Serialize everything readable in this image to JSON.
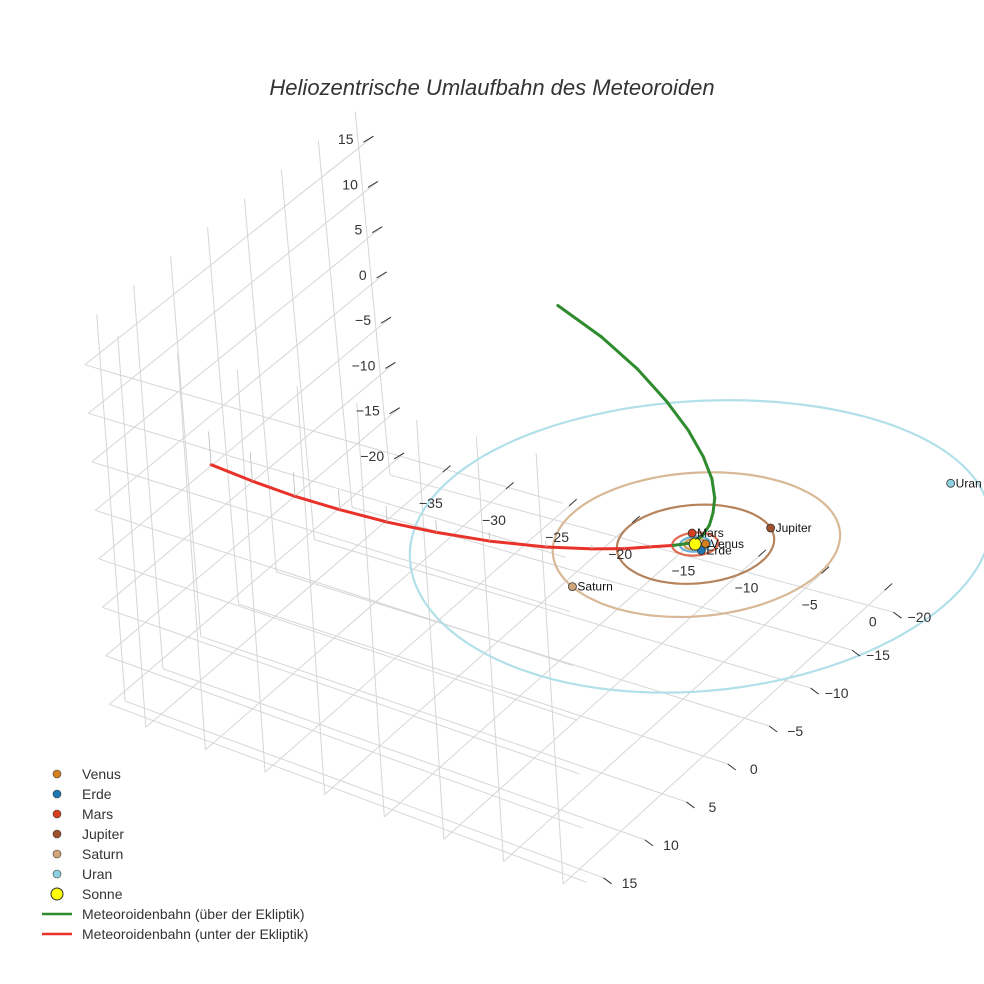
{
  "chart_data": {
    "type": "scatter3d",
    "title": "Heliozentrische Umlaufbahn des Meteoroiden",
    "xlabel": "",
    "ylabel": "",
    "zlabel": "",
    "axes": {
      "x": {
        "range": [
          -38,
          2
        ],
        "ticks": [
          -35,
          -30,
          -25,
          -20,
          -15,
          -10,
          -5,
          0
        ]
      },
      "y": {
        "range": [
          -22,
          17
        ],
        "ticks": [
          -20,
          -15,
          -10,
          -5,
          0,
          5,
          10,
          15
        ]
      },
      "z": {
        "range": [
          -21,
          19
        ],
        "ticks": [
          -20,
          -15,
          -10,
          -5,
          0,
          5,
          10,
          15
        ]
      }
    },
    "grid": true,
    "legend_position": "bottom-left",
    "planets": [
      {
        "name": "Venus",
        "label": "Venus",
        "color": "#d4801f",
        "x": 0.6,
        "y": -0.35,
        "z": 0,
        "orbit_radius": 0.72
      },
      {
        "name": "Erde",
        "label": "Erde",
        "color": "#1f77b4",
        "x": 0.85,
        "y": 0.5,
        "z": 0,
        "orbit_radius": 1.0
      },
      {
        "name": "Mars",
        "label": "Mars",
        "color": "#d6401f",
        "x": -1.0,
        "y": -1.1,
        "z": 0,
        "orbit_radius": 1.52
      },
      {
        "name": "Jupiter",
        "label": "Jupiter",
        "color": "#a0522d",
        "x": 3.2,
        "y": -4.1,
        "z": 0,
        "orbit_radius": 5.2
      },
      {
        "name": "Saturn",
        "label": "Saturn",
        "color": "#d2a679",
        "x": -4.0,
        "y": 8.6,
        "z": 0,
        "orbit_radius": 9.5
      },
      {
        "name": "Uran",
        "label": "Uran",
        "color": "#8fd0e0",
        "x": 10.3,
        "y": -14.3,
        "z": 0,
        "orbit_radius": 19.2
      }
    ],
    "orbit_colors": {
      "Venus": "#d59a52",
      "Erde": "#6cb4d6",
      "Mars": "#e06c4f",
      "Jupiter": "#b5835c",
      "Saturn": "#d8b896",
      "Uran": "#b2e0ea"
    },
    "sun": {
      "name": "Sonne",
      "label": "Sonne",
      "color": "#ffff00",
      "x": 0,
      "y": 0,
      "z": 0
    },
    "meteoroid_track": {
      "x": [
        -37,
        -33,
        -29,
        -25,
        -21,
        -17,
        -13,
        -9,
        -6,
        -4,
        -2.5,
        -1.2,
        -0.3,
        0.2,
        0.35,
        0.25,
        0,
        -0.6,
        -1.6,
        -3.0,
        -4.8,
        -7.0,
        -9.6,
        -12.6
      ],
      "y": [
        3.5,
        4.5,
        5.3,
        5.8,
        6.0,
        5.9,
        5.4,
        4.5,
        3.4,
        2.5,
        1.6,
        0.8,
        0.1,
        -0.6,
        -1.2,
        -1.8,
        -2.4,
        -3.0,
        -3.5,
        -3.9,
        -4.1,
        -4.1,
        -3.9,
        -3.4
      ],
      "z": [
        -3.5,
        -3.0,
        -2.5,
        -2.0,
        -1.6,
        -1.2,
        -0.9,
        -0.6,
        -0.4,
        -0.25,
        -0.12,
        -0.03,
        0.05,
        0.5,
        1.2,
        2.0,
        3.0,
        4.3,
        5.9,
        7.8,
        10.0,
        12.5,
        15.0,
        17.5
      ]
    },
    "series": [
      {
        "name": "Meteoroidenbahn (über der Ekliptik)",
        "color": "#2e8b2e",
        "label": "Meteoroidenbahn (über der Ekliptik)"
      },
      {
        "name": "Meteoroidenbahn (unter der Ekliptik)",
        "color": "#e8322a",
        "label": "Meteoroidenbahn (unter der Ekliptik)"
      }
    ],
    "legend": [
      {
        "label": "Venus",
        "color": "#d4801f",
        "kind": "marker"
      },
      {
        "label": "Erde",
        "color": "#1f77b4",
        "kind": "marker"
      },
      {
        "label": "Mars",
        "color": "#d6401f",
        "kind": "marker"
      },
      {
        "label": "Jupiter",
        "color": "#a0522d",
        "kind": "marker"
      },
      {
        "label": "Saturn",
        "color": "#d2a679",
        "kind": "marker"
      },
      {
        "label": "Uran",
        "color": "#8fd0e0",
        "kind": "marker"
      },
      {
        "label": "Sonne",
        "color": "#ffff00",
        "kind": "sun"
      },
      {
        "label": "Meteoroidenbahn (über der Ekliptik)",
        "color": "#2e8b2e",
        "kind": "line"
      },
      {
        "label": "Meteoroidenbahn (unter der Ekliptik)",
        "color": "#e8322a",
        "kind": "line"
      }
    ]
  }
}
